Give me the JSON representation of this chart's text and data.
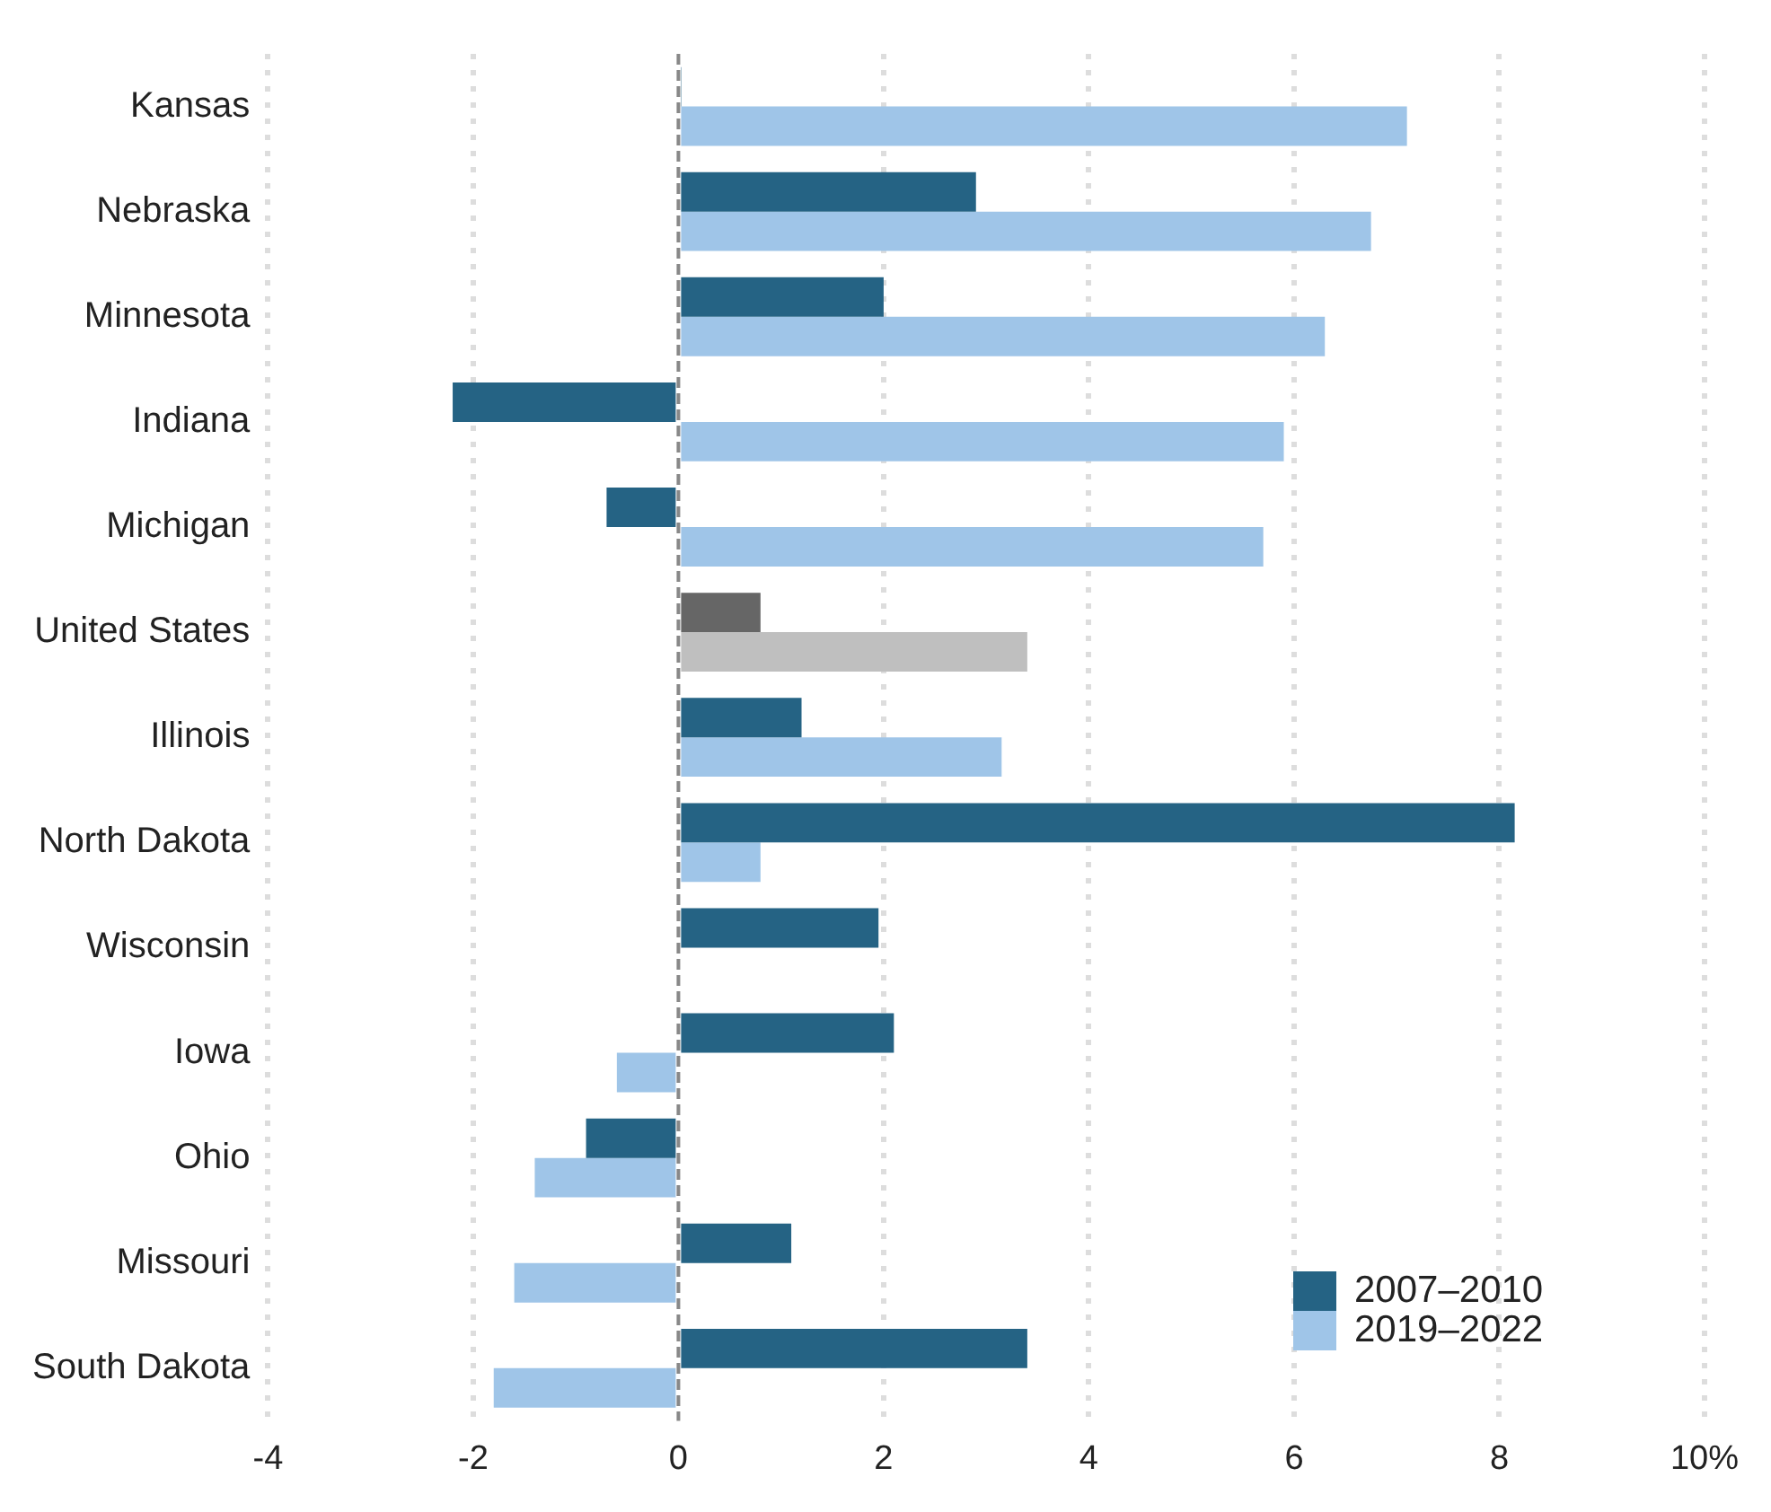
{
  "chart_data": {
    "type": "bar",
    "orientation": "horizontal",
    "categories": [
      "Kansas",
      "Nebraska",
      "Minnesota",
      "Indiana",
      "Michigan",
      "United States",
      "Illinois",
      "North Dakota",
      "Wisconsin",
      "Iowa",
      "Ohio",
      "Missouri",
      "South Dakota"
    ],
    "series": [
      {
        "name": "2007–2010",
        "color": "#256384",
        "colors": [
          "#256384",
          "#256384",
          "#256384",
          "#256384",
          "#256384",
          "#666666",
          "#256384",
          "#256384",
          "#256384",
          "#256384",
          "#256384",
          "#256384",
          "#256384"
        ],
        "values": [
          0.03,
          2.9,
          2.0,
          -2.2,
          -0.7,
          0.8,
          1.2,
          8.15,
          1.95,
          2.1,
          -0.9,
          1.1,
          3.4
        ]
      },
      {
        "name": "2019–2022",
        "color": "#9fc5e8",
        "colors": [
          "#9fc5e8",
          "#9fc5e8",
          "#9fc5e8",
          "#9fc5e8",
          "#9fc5e8",
          "#bfbfbf",
          "#9fc5e8",
          "#9fc5e8",
          "#9fc5e8",
          "#9fc5e8",
          "#9fc5e8",
          "#9fc5e8",
          "#9fc5e8"
        ],
        "values": [
          7.1,
          6.75,
          6.3,
          5.9,
          5.7,
          3.4,
          3.15,
          0.8,
          null,
          -0.6,
          -1.4,
          -1.6,
          -1.8
        ]
      }
    ],
    "xlim": [
      -4,
      10
    ],
    "xticks": [
      -4,
      -2,
      0,
      2,
      4,
      6,
      8,
      {
        "value": 10,
        "label": "10%"
      }
    ],
    "grid": "x",
    "legend": "bottom right",
    "ref_lines": [
      {
        "axis": "x",
        "value": 0,
        "color": "#888888",
        "line_style": "dashed"
      }
    ]
  }
}
